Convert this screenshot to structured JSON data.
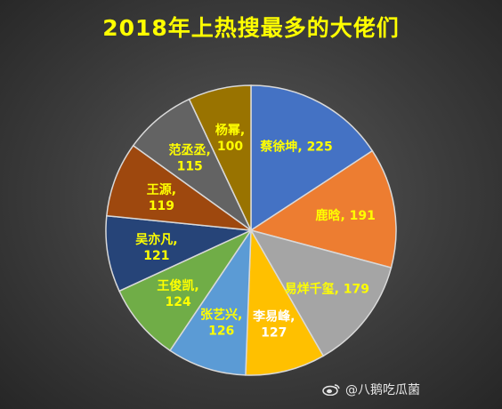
{
  "chart_data": {
    "type": "pie",
    "title": "2018年上热搜最多的大佬们",
    "slices": [
      {
        "name": "蔡徐坤",
        "value": 225,
        "label": "蔡徐坤, 225",
        "color": "#4472c4",
        "label_color": "#ffff00"
      },
      {
        "name": "鹿晗",
        "value": 191,
        "label": "鹿晗, 191",
        "color": "#ed7d31",
        "label_color": "#ffff00"
      },
      {
        "name": "易烊千玺",
        "value": 179,
        "label": "易烊千玺, 179",
        "color": "#a5a5a5",
        "label_color": "#ffff00"
      },
      {
        "name": "李易峰",
        "value": 127,
        "label": "李易峰, 127",
        "color": "#ffc000",
        "label_color": "#ffffff"
      },
      {
        "name": "张艺兴",
        "value": 126,
        "label": "张艺兴, 126",
        "color": "#5b9bd5",
        "label_color": "#ffff00"
      },
      {
        "name": "王俊凯",
        "value": 124,
        "label": "王俊凯, 124",
        "color": "#70ad47",
        "label_color": "#ffff00"
      },
      {
        "name": "吴亦凡",
        "value": 121,
        "label": "吴亦凡, 121",
        "color": "#264478",
        "label_color": "#ffff00"
      },
      {
        "name": "王源",
        "value": 119,
        "label": "王源, 119",
        "color": "#9e480e",
        "label_color": "#ffff00"
      },
      {
        "name": "范丞丞",
        "value": 115,
        "label": "范丞丞, 115",
        "color": "#636363",
        "label_color": "#ffff00"
      },
      {
        "name": "杨幂",
        "value": 100,
        "label": "杨幂, 100",
        "color": "#997300",
        "label_color": "#ffff00"
      }
    ]
  },
  "watermark": {
    "text": "@八鹅吃瓜菌",
    "icon": "weibo-icon"
  }
}
